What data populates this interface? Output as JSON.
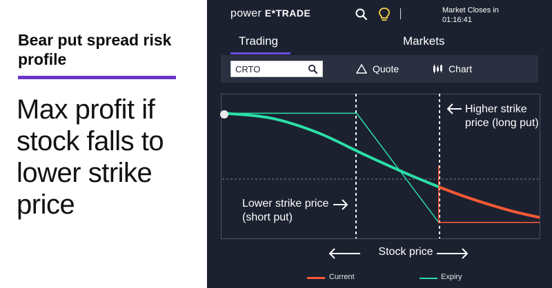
{
  "slide": {
    "title": "Bear put spread risk profile",
    "body": "Max profit if stock falls to lower strike price"
  },
  "app": {
    "logo_prefix": "power ",
    "logo_brand": "E*TRADE",
    "market_line1": "Market Closes in",
    "market_time": "01:16:41",
    "tabs": [
      {
        "label": "Trading",
        "active": true
      },
      {
        "label": "Markets",
        "active": false
      }
    ],
    "search": {
      "value": "CRTO"
    },
    "tools": {
      "quote": "Quote",
      "chart": "Chart"
    },
    "colors": {
      "accent": "#6a4be0",
      "current": "#ff5a36",
      "expiry": "#2be0a8",
      "background": "#1c2130"
    }
  },
  "chart_data": {
    "type": "line",
    "xlabel": "Stock price",
    "lower_strike_label": "Lower strike price (short put)",
    "higher_strike_label": "Higher strike price (long put)",
    "legend": [
      {
        "name": "Current",
        "color": "#ff5a36"
      },
      {
        "name": "Expiry",
        "color": "#2be0a8"
      }
    ],
    "x": [
      0,
      0.15,
      0.3,
      0.45,
      0.6,
      0.75,
      0.9,
      1.0
    ],
    "series": [
      {
        "name": "Current",
        "values": [
          0.92,
          0.88,
          0.76,
          0.58,
          0.41,
          0.26,
          0.14,
          0.08
        ]
      },
      {
        "name": "Expiry",
        "values": [
          0.92,
          0.92,
          0.92,
          0.72,
          0.52,
          0.04,
          0.04,
          0.04
        ]
      }
    ],
    "strikes": {
      "lower": 0.42,
      "higher": 0.68
    },
    "ylim": [
      0,
      1
    ],
    "grid": false
  }
}
